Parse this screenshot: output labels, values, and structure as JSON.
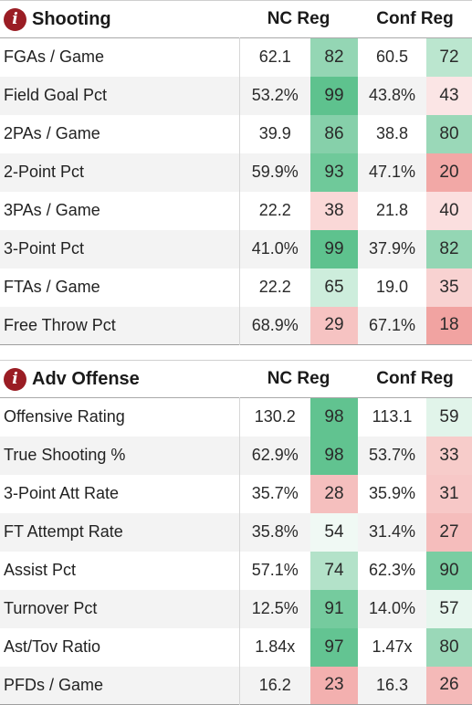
{
  "sections": [
    {
      "title": "Shooting",
      "col1": "NC Reg",
      "col2": "Conf Reg",
      "rows": [
        {
          "label": "FGAs / Game",
          "v1": "62.1",
          "r1": "82",
          "c1": "#94d6b4",
          "v2": "60.5",
          "r2": "72",
          "c2": "#bbe6cf"
        },
        {
          "label": "Field Goal Pct",
          "v1": "53.2%",
          "r1": "99",
          "c1": "#5ec28e",
          "v2": "43.8%",
          "r2": "43",
          "c2": "#fbe5e5"
        },
        {
          "label": "2PAs / Game",
          "v1": "39.9",
          "r1": "86",
          "c1": "#86d0aa",
          "v2": "38.8",
          "r2": "80",
          "c2": "#9ad8b8"
        },
        {
          "label": "2-Point Pct",
          "v1": "59.9%",
          "r1": "93",
          "c1": "#6fc99a",
          "v2": "47.1%",
          "r2": "20",
          "c2": "#f2a8a6"
        },
        {
          "label": "3PAs / Game",
          "v1": "22.2",
          "r1": "38",
          "c1": "#fad8d7",
          "v2": "21.8",
          "r2": "40",
          "c2": "#fbdfdf"
        },
        {
          "label": "3-Point Pct",
          "v1": "41.0%",
          "r1": "99",
          "c1": "#5ec28e",
          "v2": "37.9%",
          "r2": "82",
          "c2": "#94d6b4"
        },
        {
          "label": "FTAs / Game",
          "v1": "22.2",
          "r1": "65",
          "c1": "#cdeddc",
          "v2": "19.0",
          "r2": "35",
          "c2": "#f8d2d1"
        },
        {
          "label": "Free Throw Pct",
          "v1": "68.9%",
          "r1": "29",
          "c1": "#f6c3c2",
          "v2": "67.1%",
          "r2": "18",
          "c2": "#f1a3a1"
        }
      ]
    },
    {
      "title": "Adv Offense",
      "col1": "NC Reg",
      "col2": "Conf Reg",
      "rows": [
        {
          "label": "Offensive Rating",
          "v1": "130.2",
          "r1": "98",
          "c1": "#61c390",
          "v2": "113.1",
          "r2": "59",
          "c2": "#e1f4ea"
        },
        {
          "label": "True Shooting %",
          "v1": "62.9%",
          "r1": "98",
          "c1": "#61c390",
          "v2": "53.7%",
          "r2": "33",
          "c2": "#f7ccca"
        },
        {
          "label": "3-Point Att Rate",
          "v1": "35.7%",
          "r1": "28",
          "c1": "#f5bfbe",
          "v2": "35.9%",
          "r2": "31",
          "c2": "#f7c8c7"
        },
        {
          "label": "FT Attempt Rate",
          "v1": "35.8%",
          "r1": "54",
          "c1": "#f0f9f4",
          "v2": "31.4%",
          "r2": "27",
          "c2": "#f5bdbc"
        },
        {
          "label": "Assist Pct",
          "v1": "57.1%",
          "r1": "74",
          "c1": "#b3e2c9",
          "v2": "62.3%",
          "r2": "90",
          "c2": "#7acda2"
        },
        {
          "label": "Turnover Pct",
          "v1": "12.5%",
          "r1": "91",
          "c1": "#75cb9e",
          "v2": "14.0%",
          "r2": "57",
          "c2": "#e7f6ee"
        },
        {
          "label": "Ast/Tov Ratio",
          "v1": "1.84x",
          "r1": "97",
          "c1": "#63c492",
          "v2": "1.47x",
          "r2": "80",
          "c2": "#9ad8b8"
        },
        {
          "label": "PFDs / Game",
          "v1": "16.2",
          "r1": "23",
          "c1": "#f3b0af",
          "v2": "16.3",
          "r2": "26",
          "c2": "#f4b9b8"
        }
      ]
    }
  ]
}
